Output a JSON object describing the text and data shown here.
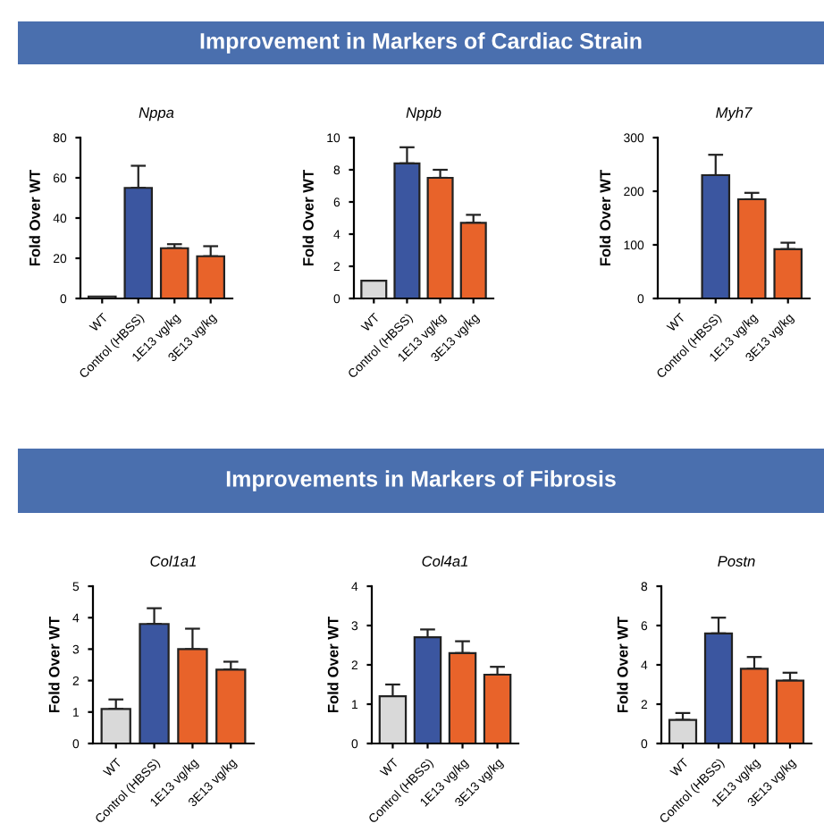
{
  "chart_data": [
    {
      "type": "bar",
      "title": "Nppa",
      "ylabel": "Fold Over WT",
      "annotations": [
        "Improvement in Markers of Cardiac Strain"
      ],
      "categories": [
        "WT",
        "Control (HBSS)",
        "1E13 vg/kg",
        "3E13 vg/kg"
      ],
      "values": [
        1,
        55,
        25,
        21
      ],
      "errors": [
        null,
        [
          55,
          66
        ],
        [
          25,
          27
        ],
        [
          21,
          26
        ]
      ],
      "colors": [
        "#d9d9d9",
        "#3b56a0",
        "#e8632a",
        "#e8632a"
      ],
      "ylim": [
        0,
        80
      ],
      "yticks": [
        0,
        20,
        40,
        60,
        80
      ]
    },
    {
      "type": "bar",
      "title": "Nppb",
      "ylabel": "Fold Over WT",
      "categories": [
        "WT",
        "Control (HBSS)",
        "1E13 vg/kg",
        "3E13 vg/kg"
      ],
      "values": [
        1.1,
        8.4,
        7.5,
        4.7
      ],
      "errors": [
        null,
        [
          8.4,
          9.4
        ],
        [
          7.5,
          8.0
        ],
        [
          4.7,
          5.2
        ]
      ],
      "colors": [
        "#d9d9d9",
        "#3b56a0",
        "#e8632a",
        "#e8632a"
      ],
      "ylim": [
        0,
        10
      ],
      "yticks": [
        0,
        2,
        4,
        6,
        8,
        10
      ]
    },
    {
      "type": "bar",
      "title": "Myh7",
      "ylabel": "Fold Over WT",
      "categories": [
        "WT",
        "Control (HBSS)",
        "1E13 vg/kg",
        "3E13 vg/kg"
      ],
      "values": [
        null,
        230,
        185,
        92
      ],
      "errors": [
        null,
        [
          230,
          268
        ],
        [
          185,
          197
        ],
        [
          92,
          104
        ]
      ],
      "colors": [
        "#d9d9d9",
        "#3b56a0",
        "#e8632a",
        "#e8632a"
      ],
      "ylim": [
        0,
        300
      ],
      "yticks": [
        0,
        100,
        200,
        300
      ]
    },
    {
      "type": "bar",
      "title": "Col1a1",
      "ylabel": "Fold Over WT",
      "annotations": [
        "Improvements in Markers of Fibrosis"
      ],
      "categories": [
        "WT",
        "Control (HBSS)",
        "1E13 vg/kg",
        "3E13 vg/kg"
      ],
      "values": [
        1.1,
        3.8,
        3.0,
        2.35
      ],
      "errors": [
        [
          1.1,
          1.4
        ],
        [
          3.8,
          4.3
        ],
        [
          3.0,
          3.65
        ],
        [
          2.35,
          2.6
        ]
      ],
      "colors": [
        "#d9d9d9",
        "#3b56a0",
        "#e8632a",
        "#e8632a"
      ],
      "ylim": [
        0,
        5
      ],
      "yticks": [
        0,
        1,
        2,
        3,
        4,
        5
      ]
    },
    {
      "type": "bar",
      "title": "Col4a1",
      "ylabel": "Fold Over WT",
      "categories": [
        "WT",
        "Control (HBSS)",
        "1E13 vg/kg",
        "3E13 vg/kg"
      ],
      "values": [
        1.2,
        2.7,
        2.3,
        1.75
      ],
      "errors": [
        [
          1.2,
          1.5
        ],
        [
          2.7,
          2.9
        ],
        [
          2.3,
          2.6
        ],
        [
          1.75,
          1.95
        ]
      ],
      "colors": [
        "#d9d9d9",
        "#3b56a0",
        "#e8632a",
        "#e8632a"
      ],
      "ylim": [
        0,
        4
      ],
      "yticks": [
        0,
        1,
        2,
        3,
        4
      ]
    },
    {
      "type": "bar",
      "title": "Postn",
      "ylabel": "Fold Over WT",
      "categories": [
        "WT",
        "Control (HBSS)",
        "1E13 vg/kg",
        "3E13 vg/kg"
      ],
      "values": [
        1.2,
        5.6,
        3.8,
        3.2
      ],
      "errors": [
        [
          1.2,
          1.55
        ],
        [
          5.6,
          6.4
        ],
        [
          3.8,
          4.4
        ],
        [
          3.2,
          3.6
        ]
      ],
      "colors": [
        "#d9d9d9",
        "#3b56a0",
        "#e8632a",
        "#e8632a"
      ],
      "ylim": [
        0,
        8
      ],
      "yticks": [
        0,
        2,
        4,
        6,
        8
      ]
    }
  ]
}
